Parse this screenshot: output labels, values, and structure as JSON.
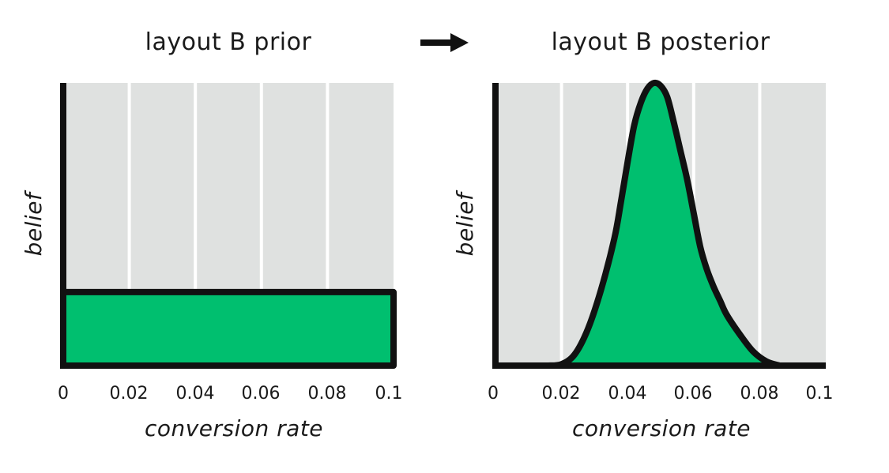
{
  "arrow": {
    "icon": "arrow-right-icon"
  },
  "colors": {
    "fill": "#00bf6f",
    "panel": "#dfe1e0",
    "grid": "#ffffff",
    "stroke": "#111111"
  },
  "chart_data": [
    {
      "type": "area",
      "title": "layout B prior",
      "xlabel": "conversion rate",
      "ylabel": "belief",
      "xlim": [
        0,
        0.1
      ],
      "ylim": [
        0,
        100
      ],
      "xticks": [
        "0",
        "0.02",
        "0.04",
        "0.06",
        "0.08",
        "0.1"
      ],
      "grid": true,
      "series": [
        {
          "x": [
            0,
            0.1
          ],
          "y": [
            26,
            26
          ]
        }
      ]
    },
    {
      "type": "area",
      "title": "layout B posterior",
      "xlabel": "conversion rate",
      "ylabel": "belief",
      "xlim": [
        0,
        0.1
      ],
      "ylim": [
        0,
        100
      ],
      "xticks": [
        "0",
        "0.02",
        "0.04",
        "0.06",
        "0.08",
        "0.1"
      ],
      "grid": true,
      "series": [
        {
          "x": [
            0.016,
            0.02,
            0.024,
            0.028,
            0.032,
            0.036,
            0.038,
            0.04,
            0.042,
            0.044,
            0.046,
            0.048,
            0.05,
            0.052,
            0.054,
            0.056,
            0.058,
            0.06,
            0.062,
            0.064,
            0.066,
            0.068,
            0.07,
            0.074,
            0.078,
            0.082,
            0.086
          ],
          "y": [
            0,
            0.5,
            4,
            13,
            27,
            45,
            58,
            72,
            85,
            93,
            98,
            100,
            99,
            95,
            86,
            76,
            66,
            54,
            42,
            34,
            28,
            23,
            18,
            11,
            5,
            1.5,
            0
          ]
        }
      ]
    }
  ]
}
